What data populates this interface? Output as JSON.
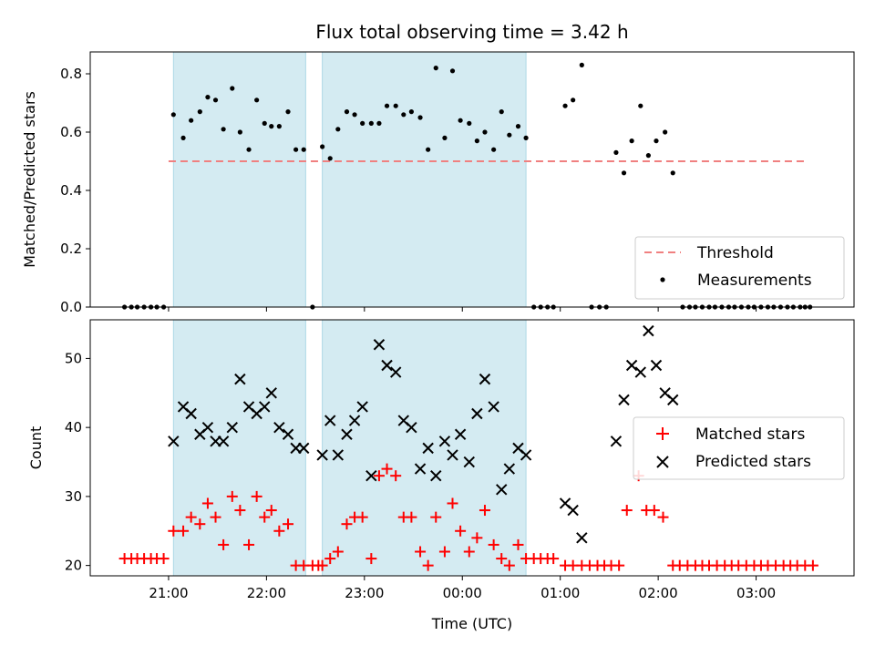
{
  "title": "Flux total observing time = 3.42 h",
  "colors": {
    "shade": "#add8e6",
    "threshold": "#f08080",
    "measurement": "#000000",
    "matched": "#ff0000",
    "predicted": "#000000"
  },
  "chart_data": [
    {
      "type": "scatter",
      "panel": "top",
      "ylabel": "Matched/Predicted stars",
      "xlabel": "",
      "x_unit": "hours since 21:00 UTC (display as HH:MM)",
      "xlim": [
        -0.8,
        7.0
      ],
      "ylim": [
        0.0,
        0.875
      ],
      "yticks": [
        0.0,
        0.2,
        0.4,
        0.6,
        0.8
      ],
      "ytick_labels": [
        "0.0",
        "0.2",
        "0.4",
        "0.6",
        "0.8"
      ],
      "shaded_intervals": [
        [
          0.05,
          1.4
        ],
        [
          1.57,
          3.65
        ]
      ],
      "threshold": {
        "name": "Threshold",
        "y": 0.5,
        "x_range": [
          0.0,
          6.5
        ]
      },
      "legend": {
        "position": "lower-right",
        "entries": [
          "Threshold",
          "Measurements"
        ]
      },
      "series": [
        {
          "name": "Measurements",
          "points": [
            [
              -0.45,
              0.0
            ],
            [
              -0.38,
              0.0
            ],
            [
              -0.32,
              0.0
            ],
            [
              -0.25,
              0.0
            ],
            [
              -0.18,
              0.0
            ],
            [
              -0.12,
              0.0
            ],
            [
              -0.05,
              0.0
            ],
            [
              0.05,
              0.66
            ],
            [
              0.15,
              0.58
            ],
            [
              0.23,
              0.64
            ],
            [
              0.32,
              0.67
            ],
            [
              0.4,
              0.72
            ],
            [
              0.48,
              0.71
            ],
            [
              0.56,
              0.61
            ],
            [
              0.65,
              0.75
            ],
            [
              0.73,
              0.6
            ],
            [
              0.82,
              0.54
            ],
            [
              0.9,
              0.71
            ],
            [
              0.98,
              0.63
            ],
            [
              1.05,
              0.62
            ],
            [
              1.13,
              0.62
            ],
            [
              1.22,
              0.67
            ],
            [
              1.3,
              0.54
            ],
            [
              1.38,
              0.54
            ],
            [
              1.47,
              0.0
            ],
            [
              1.57,
              0.55
            ],
            [
              1.65,
              0.51
            ],
            [
              1.73,
              0.61
            ],
            [
              1.82,
              0.67
            ],
            [
              1.9,
              0.66
            ],
            [
              1.98,
              0.63
            ],
            [
              2.07,
              0.63
            ],
            [
              2.15,
              0.63
            ],
            [
              2.23,
              0.69
            ],
            [
              2.32,
              0.69
            ],
            [
              2.4,
              0.66
            ],
            [
              2.48,
              0.67
            ],
            [
              2.57,
              0.65
            ],
            [
              2.65,
              0.54
            ],
            [
              2.73,
              0.82
            ],
            [
              2.82,
              0.58
            ],
            [
              2.9,
              0.81
            ],
            [
              2.98,
              0.64
            ],
            [
              3.07,
              0.63
            ],
            [
              3.15,
              0.57
            ],
            [
              3.23,
              0.6
            ],
            [
              3.32,
              0.54
            ],
            [
              3.4,
              0.67
            ],
            [
              3.48,
              0.59
            ],
            [
              3.57,
              0.62
            ],
            [
              3.65,
              0.58
            ],
            [
              3.73,
              0.0
            ],
            [
              3.8,
              0.0
            ],
            [
              3.87,
              0.0
            ],
            [
              3.93,
              0.0
            ],
            [
              4.05,
              0.69
            ],
            [
              4.13,
              0.71
            ],
            [
              4.22,
              0.83
            ],
            [
              4.32,
              0.0
            ],
            [
              4.4,
              0.0
            ],
            [
              4.47,
              0.0
            ],
            [
              4.57,
              0.53
            ],
            [
              4.65,
              0.46
            ],
            [
              4.73,
              0.57
            ],
            [
              4.82,
              0.69
            ],
            [
              4.9,
              0.52
            ],
            [
              4.98,
              0.57
            ],
            [
              5.07,
              0.6
            ],
            [
              5.15,
              0.46
            ],
            [
              5.25,
              0.0
            ],
            [
              5.32,
              0.0
            ],
            [
              5.38,
              0.0
            ],
            [
              5.45,
              0.0
            ],
            [
              5.52,
              0.0
            ],
            [
              5.58,
              0.0
            ],
            [
              5.65,
              0.0
            ],
            [
              5.72,
              0.0
            ],
            [
              5.78,
              0.0
            ],
            [
              5.85,
              0.0
            ],
            [
              5.92,
              0.0
            ],
            [
              5.98,
              0.0
            ],
            [
              6.05,
              0.0
            ],
            [
              6.12,
              0.0
            ],
            [
              6.18,
              0.0
            ],
            [
              6.25,
              0.0
            ],
            [
              6.32,
              0.0
            ],
            [
              6.38,
              0.0
            ],
            [
              6.45,
              0.0
            ],
            [
              6.5,
              0.0
            ],
            [
              6.55,
              0.0
            ]
          ]
        }
      ]
    },
    {
      "type": "scatter",
      "panel": "bottom",
      "ylabel": "Count",
      "xlabel": "Time (UTC)",
      "x_unit": "hours since 21:00 UTC (display as HH:MM)",
      "xlim": [
        -0.8,
        7.0
      ],
      "ylim": [
        18.5,
        55.6
      ],
      "yticks": [
        20,
        30,
        40,
        50
      ],
      "ytick_labels": [
        "20",
        "30",
        "40",
        "50"
      ],
      "xticks": [
        0,
        1,
        2,
        3,
        4,
        5,
        6
      ],
      "xtick_labels": [
        "21:00",
        "22:00",
        "23:00",
        "00:00",
        "01:00",
        "02:00",
        "03:00"
      ],
      "shaded_intervals": [
        [
          0.05,
          1.4
        ],
        [
          1.57,
          3.65
        ]
      ],
      "legend": {
        "position": "right",
        "entries": [
          "Matched stars",
          "Predicted stars"
        ]
      },
      "series": [
        {
          "name": "Matched stars",
          "marker": "+",
          "points": [
            [
              -0.45,
              21
            ],
            [
              -0.38,
              21
            ],
            [
              -0.32,
              21
            ],
            [
              -0.25,
              21
            ],
            [
              -0.18,
              21
            ],
            [
              -0.12,
              21
            ],
            [
              -0.05,
              21
            ],
            [
              0.05,
              25
            ],
            [
              0.15,
              25
            ],
            [
              0.23,
              27
            ],
            [
              0.32,
              26
            ],
            [
              0.4,
              29
            ],
            [
              0.48,
              27
            ],
            [
              0.56,
              23
            ],
            [
              0.65,
              30
            ],
            [
              0.73,
              28
            ],
            [
              0.82,
              23
            ],
            [
              0.9,
              30
            ],
            [
              0.98,
              27
            ],
            [
              1.05,
              28
            ],
            [
              1.13,
              25
            ],
            [
              1.22,
              26
            ],
            [
              1.3,
              20
            ],
            [
              1.38,
              20
            ],
            [
              1.47,
              20
            ],
            [
              1.53,
              20
            ],
            [
              1.57,
              20
            ],
            [
              1.65,
              21
            ],
            [
              1.73,
              22
            ],
            [
              1.82,
              26
            ],
            [
              1.9,
              27
            ],
            [
              1.98,
              27
            ],
            [
              2.07,
              21
            ],
            [
              2.15,
              33
            ],
            [
              2.23,
              34
            ],
            [
              2.32,
              33
            ],
            [
              2.4,
              27
            ],
            [
              2.48,
              27
            ],
            [
              2.57,
              22
            ],
            [
              2.65,
              20
            ],
            [
              2.73,
              27
            ],
            [
              2.82,
              22
            ],
            [
              2.9,
              29
            ],
            [
              2.98,
              25
            ],
            [
              3.07,
              22
            ],
            [
              3.15,
              24
            ],
            [
              3.23,
              28
            ],
            [
              3.32,
              23
            ],
            [
              3.4,
              21
            ],
            [
              3.48,
              20
            ],
            [
              3.57,
              23
            ],
            [
              3.65,
              21
            ],
            [
              3.73,
              21
            ],
            [
              3.8,
              21
            ],
            [
              3.87,
              21
            ],
            [
              3.93,
              21
            ],
            [
              4.05,
              20
            ],
            [
              4.13,
              20
            ],
            [
              4.22,
              20
            ],
            [
              4.3,
              20
            ],
            [
              4.38,
              20
            ],
            [
              4.45,
              20
            ],
            [
              4.52,
              20
            ],
            [
              4.6,
              20
            ],
            [
              4.68,
              28
            ],
            [
              4.8,
              33
            ],
            [
              4.88,
              28
            ],
            [
              4.96,
              28
            ],
            [
              5.05,
              27
            ],
            [
              5.15,
              20
            ],
            [
              5.22,
              20
            ],
            [
              5.3,
              20
            ],
            [
              5.38,
              20
            ],
            [
              5.45,
              20
            ],
            [
              5.52,
              20
            ],
            [
              5.6,
              20
            ],
            [
              5.68,
              20
            ],
            [
              5.75,
              20
            ],
            [
              5.82,
              20
            ],
            [
              5.9,
              20
            ],
            [
              5.98,
              20
            ],
            [
              6.05,
              20
            ],
            [
              6.12,
              20
            ],
            [
              6.2,
              20
            ],
            [
              6.28,
              20
            ],
            [
              6.35,
              20
            ],
            [
              6.42,
              20
            ],
            [
              6.5,
              20
            ],
            [
              6.58,
              20
            ]
          ]
        },
        {
          "name": "Predicted stars",
          "marker": "x",
          "points": [
            [
              0.05,
              38
            ],
            [
              0.15,
              43
            ],
            [
              0.23,
              42
            ],
            [
              0.32,
              39
            ],
            [
              0.4,
              40
            ],
            [
              0.48,
              38
            ],
            [
              0.56,
              38
            ],
            [
              0.65,
              40
            ],
            [
              0.73,
              47
            ],
            [
              0.82,
              43
            ],
            [
              0.9,
              42
            ],
            [
              0.98,
              43
            ],
            [
              1.05,
              45
            ],
            [
              1.13,
              40
            ],
            [
              1.22,
              39
            ],
            [
              1.3,
              37
            ],
            [
              1.38,
              37
            ],
            [
              1.57,
              36
            ],
            [
              1.65,
              41
            ],
            [
              1.73,
              36
            ],
            [
              1.82,
              39
            ],
            [
              1.9,
              41
            ],
            [
              1.98,
              43
            ],
            [
              2.07,
              33
            ],
            [
              2.15,
              52
            ],
            [
              2.23,
              49
            ],
            [
              2.32,
              48
            ],
            [
              2.4,
              41
            ],
            [
              2.48,
              40
            ],
            [
              2.57,
              34
            ],
            [
              2.65,
              37
            ],
            [
              2.73,
              33
            ],
            [
              2.82,
              38
            ],
            [
              2.9,
              36
            ],
            [
              2.98,
              39
            ],
            [
              3.07,
              35
            ],
            [
              3.15,
              42
            ],
            [
              3.23,
              47
            ],
            [
              3.32,
              43
            ],
            [
              3.4,
              31
            ],
            [
              3.48,
              34
            ],
            [
              3.57,
              37
            ],
            [
              3.65,
              36
            ],
            [
              4.05,
              29
            ],
            [
              4.13,
              28
            ],
            [
              4.22,
              24
            ],
            [
              4.57,
              38
            ],
            [
              4.65,
              44
            ],
            [
              4.73,
              49
            ],
            [
              4.82,
              48
            ],
            [
              4.9,
              54
            ],
            [
              4.98,
              49
            ],
            [
              5.07,
              45
            ],
            [
              5.15,
              44
            ]
          ]
        }
      ]
    }
  ]
}
